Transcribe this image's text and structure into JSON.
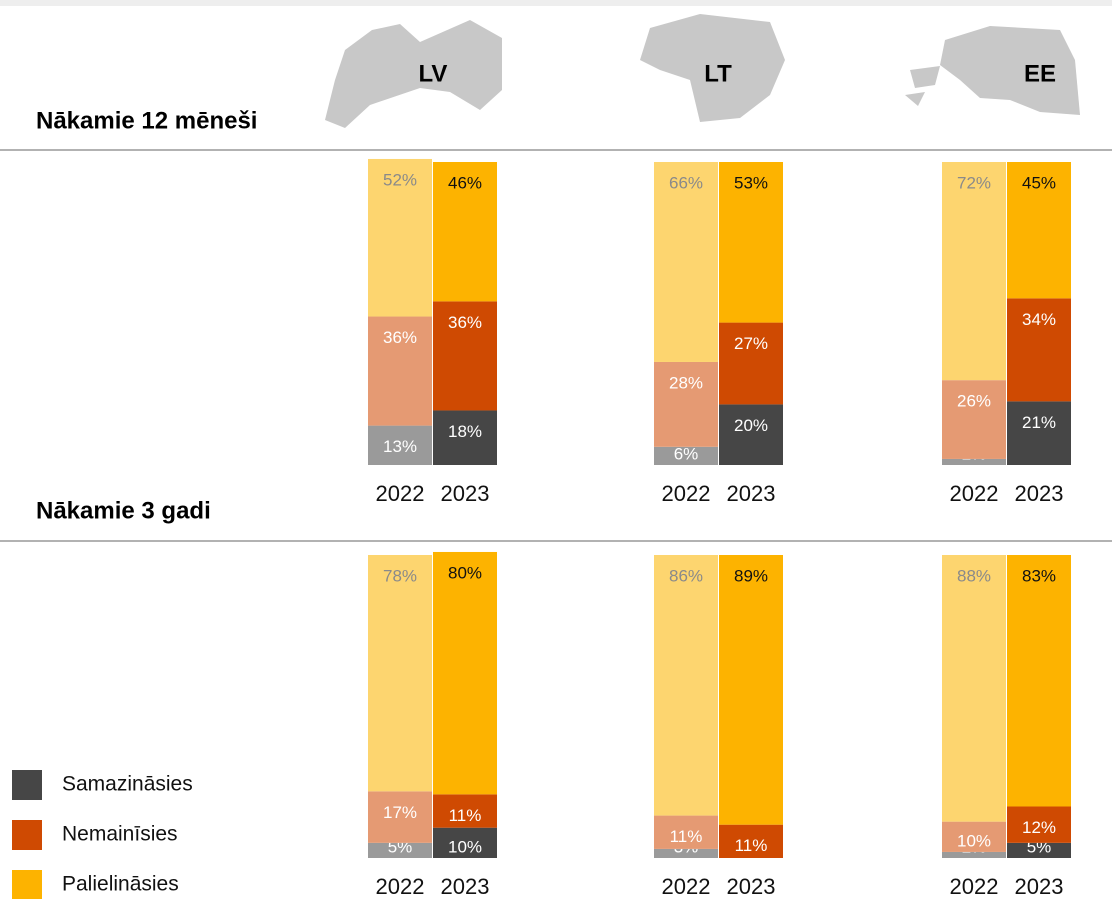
{
  "countries": [
    "LV",
    "LT",
    "EE"
  ],
  "sections": [
    "Nākamie 12 mēneši",
    "Nākamie 3 gadi"
  ],
  "chart_data": [
    {
      "type": "bar",
      "stacked": true,
      "categories": [
        "2022",
        "2023"
      ],
      "ylim": [
        0,
        100
      ],
      "series": [
        {
          "name": "Samazināsies",
          "color": [
            "#9a9a9a",
            "#464646"
          ],
          "values": [
            13,
            18
          ],
          "value_labels": [
            "13%",
            "18%"
          ]
        },
        {
          "name": "Nemainīsies",
          "color": [
            "#e59a73",
            "#cf4a02"
          ],
          "values": [
            36,
            36
          ],
          "value_labels": [
            "36%",
            "36%"
          ]
        },
        {
          "name": "Palielināsies",
          "color": [
            "#fdd56f",
            "#fdb300"
          ],
          "values": [
            52,
            46
          ],
          "value_labels": [
            "52%",
            "46%"
          ]
        }
      ]
    },
    {
      "type": "bar",
      "stacked": true,
      "categories": [
        "2022",
        "2023"
      ],
      "ylim": [
        0,
        100
      ],
      "series": [
        {
          "name": "Samazināsies",
          "color": [
            "#9a9a9a",
            "#464646"
          ],
          "values": [
            6,
            20
          ],
          "value_labels": [
            "6%",
            "20%"
          ]
        },
        {
          "name": "Nemainīsies",
          "color": [
            "#e59a73",
            "#cf4a02"
          ],
          "values": [
            28,
            27
          ],
          "value_labels": [
            "28%",
            "27%"
          ]
        },
        {
          "name": "Palielināsies",
          "color": [
            "#fdd56f",
            "#fdb300"
          ],
          "values": [
            66,
            53
          ],
          "value_labels": [
            "66%",
            "53%"
          ]
        }
      ]
    },
    {
      "type": "bar",
      "stacked": true,
      "categories": [
        "2022",
        "2023"
      ],
      "ylim": [
        0,
        100
      ],
      "series": [
        {
          "name": "Samazināsies",
          "color": [
            "#9a9a9a",
            "#464646"
          ],
          "values": [
            2,
            21
          ],
          "value_labels": [
            "2%",
            "21%"
          ]
        },
        {
          "name": "Nemainīsies",
          "color": [
            "#e59a73",
            "#cf4a02"
          ],
          "values": [
            26,
            34
          ],
          "value_labels": [
            "26%",
            "34%"
          ]
        },
        {
          "name": "Palielināsies",
          "color": [
            "#fdd56f",
            "#fdb300"
          ],
          "values": [
            72,
            45
          ],
          "value_labels": [
            "72%",
            "45%"
          ]
        }
      ]
    },
    {
      "type": "bar",
      "stacked": true,
      "categories": [
        "2022",
        "2023"
      ],
      "ylim": [
        0,
        100
      ],
      "series": [
        {
          "name": "Samazināsies",
          "color": [
            "#9a9a9a",
            "#464646"
          ],
          "values": [
            5,
            10
          ],
          "value_labels": [
            "5%",
            "10%"
          ]
        },
        {
          "name": "Nemainīsies",
          "color": [
            "#e59a73",
            "#cf4a02"
          ],
          "values": [
            17,
            11
          ],
          "value_labels": [
            "17%",
            "11%"
          ]
        },
        {
          "name": "Palielināsies",
          "color": [
            "#fdd56f",
            "#fdb300"
          ],
          "values": [
            78,
            80
          ],
          "value_labels": [
            "78%",
            "80%"
          ]
        }
      ]
    },
    {
      "type": "bar",
      "stacked": true,
      "categories": [
        "2022",
        "2023"
      ],
      "ylim": [
        0,
        100
      ],
      "series": [
        {
          "name": "Samazināsies",
          "color": [
            "#9a9a9a",
            "#464646"
          ],
          "values": [
            3,
            0
          ],
          "value_labels": [
            "3%",
            null
          ]
        },
        {
          "name": "Nemainīsies",
          "color": [
            "#e59a73",
            "#cf4a02"
          ],
          "values": [
            11,
            11
          ],
          "value_labels": [
            "11%",
            "11%"
          ]
        },
        {
          "name": "Palielināsies",
          "color": [
            "#fdd56f",
            "#fdb300"
          ],
          "values": [
            86,
            89
          ],
          "value_labels": [
            "86%",
            "89%"
          ]
        }
      ]
    },
    {
      "type": "bar",
      "stacked": true,
      "categories": [
        "2022",
        "2023"
      ],
      "ylim": [
        0,
        100
      ],
      "series": [
        {
          "name": "Samazināsies",
          "color": [
            "#9a9a9a",
            "#464646"
          ],
          "values": [
            2,
            5
          ],
          "value_labels": [
            "2%",
            "5%"
          ]
        },
        {
          "name": "Nemainīsies",
          "color": [
            "#e59a73",
            "#cf4a02"
          ],
          "values": [
            10,
            12
          ],
          "value_labels": [
            "10%",
            "12%"
          ]
        },
        {
          "name": "Palielināsies",
          "color": [
            "#fdd56f",
            "#fdb300"
          ],
          "values": [
            88,
            83
          ],
          "value_labels": [
            "88%",
            "83%"
          ]
        }
      ]
    }
  ]
}
